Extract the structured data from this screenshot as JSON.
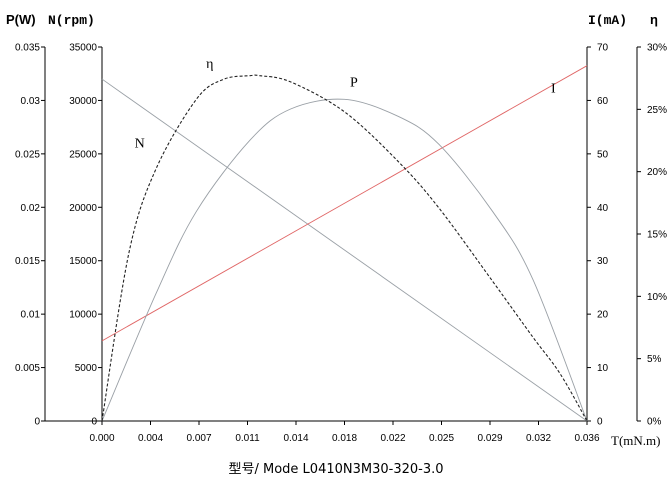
{
  "chart_data": {
    "type": "line",
    "caption": "型号/ Mode   L0410N3M30-320-3.0",
    "xlabel": "T(mN.m)",
    "x_ticks": [
      "0.000",
      "0.004",
      "0.007",
      "0.011",
      "0.014",
      "0.018",
      "0.022",
      "0.025",
      "0.029",
      "0.032",
      "0.036"
    ],
    "xlim": [
      0,
      0.036
    ],
    "grid": false,
    "axes": {
      "p": {
        "label": "P(W)",
        "ylim": [
          0,
          0.035
        ],
        "ticks": [
          "0",
          "0.005",
          "0.01",
          "0.015",
          "0.02",
          "0.025",
          "0.03",
          "0.035"
        ]
      },
      "n": {
        "label": "N(rpm)",
        "ylim": [
          0,
          35000
        ],
        "ticks": [
          "0",
          "5000",
          "10000",
          "15000",
          "20000",
          "25000",
          "30000",
          "35000"
        ]
      },
      "i": {
        "label": "I(mA)",
        "ylim": [
          0,
          70
        ],
        "ticks": [
          "0",
          "10",
          "20",
          "30",
          "40",
          "50",
          "60",
          "70"
        ]
      },
      "eta": {
        "label": "η",
        "ylim": [
          0,
          30
        ],
        "ticks": [
          "0%",
          "5%",
          "10%",
          "15%",
          "20%",
          "25%",
          "30%"
        ]
      }
    },
    "series": [
      {
        "name": "N",
        "axis": "n",
        "color": "#9aa0a6",
        "dash": "",
        "x": [
          0,
          0.036
        ],
        "y": [
          32000,
          0
        ]
      },
      {
        "name": "I",
        "axis": "i",
        "color": "#e06666",
        "dash": "",
        "x": [
          0,
          0.036
        ],
        "y": [
          15,
          66.5
        ]
      },
      {
        "name": "P",
        "axis": "p",
        "color": "#9aa0a6",
        "dash": "",
        "x": [
          0,
          0.004,
          0.007,
          0.011,
          0.014,
          0.018,
          0.022,
          0.025,
          0.029,
          0.032,
          0.036
        ],
        "y": [
          0,
          0.0119,
          0.0196,
          0.0263,
          0.0292,
          0.0301,
          0.0285,
          0.0259,
          0.0196,
          0.0132,
          0
        ]
      },
      {
        "name": "η",
        "axis": "eta",
        "color": "#222222",
        "dash": "3,2",
        "x": [
          0,
          0.002,
          0.004,
          0.007,
          0.009,
          0.011,
          0.0117,
          0.014,
          0.018,
          0.022,
          0.025,
          0.029,
          0.032,
          0.034,
          0.036
        ],
        "y": [
          0,
          13.5,
          20.2,
          25.8,
          27.4,
          27.7,
          27.7,
          27.2,
          24.8,
          20.8,
          17.1,
          11.2,
          6.7,
          3.8,
          0
        ]
      }
    ],
    "curve_labels": [
      {
        "text": "N",
        "series": "N",
        "x": 0.0028,
        "axis": "n",
        "y": 25600
      },
      {
        "text": "η",
        "series": "η",
        "x": 0.008,
        "axis": "eta",
        "y": 28.3
      },
      {
        "text": "P",
        "series": "P",
        "x": 0.0187,
        "axis": "p",
        "y": 0.0313
      },
      {
        "text": "I",
        "series": "I",
        "x": 0.0335,
        "axis": "i",
        "y": 61.5
      }
    ]
  }
}
